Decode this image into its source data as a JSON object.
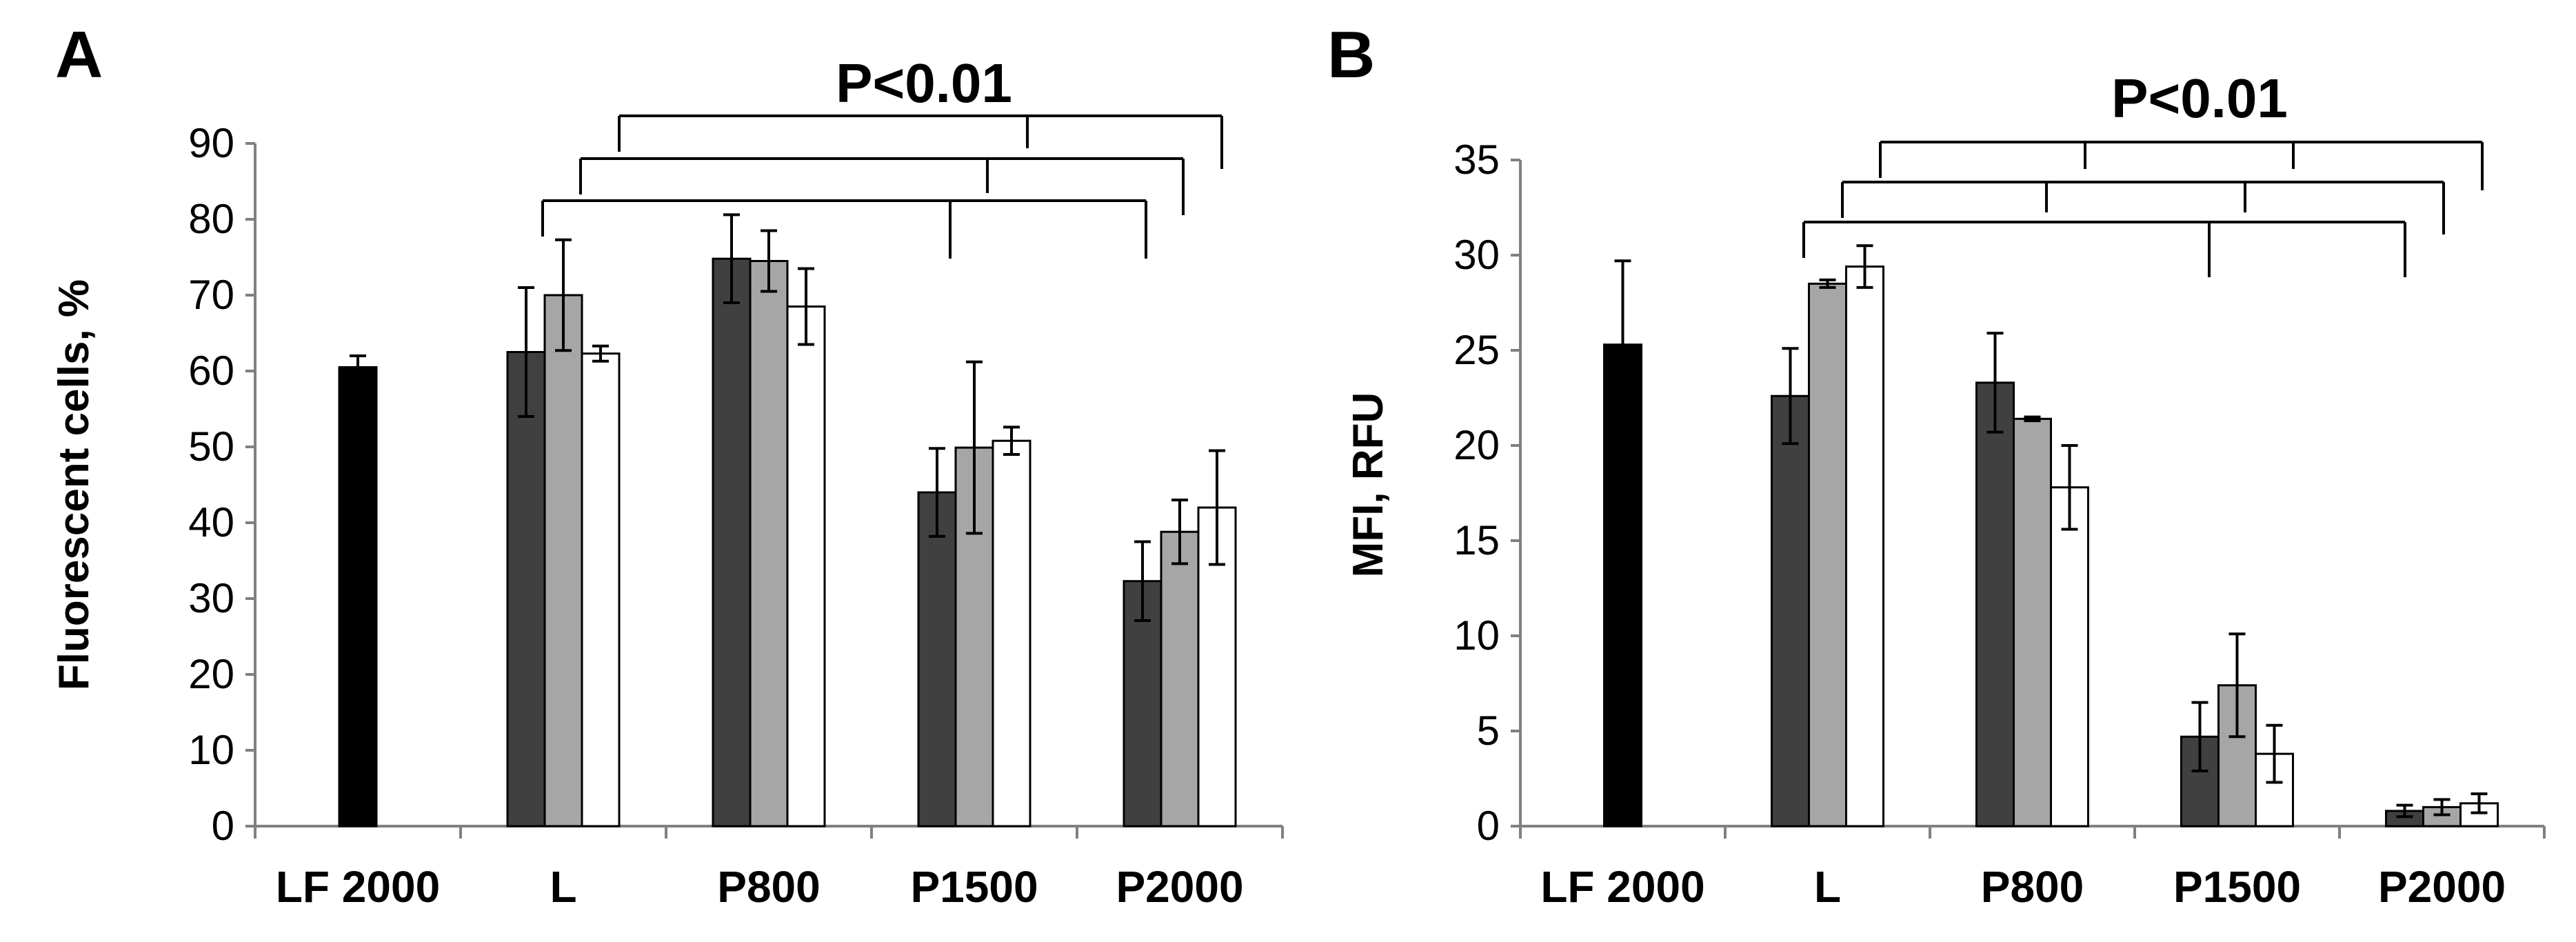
{
  "chart_data": [
    {
      "panel": "A",
      "type": "bar",
      "ylabel": "Fluorescent cells, %",
      "ylim": [
        0,
        90
      ],
      "yticks": [
        0,
        10,
        20,
        30,
        40,
        50,
        60,
        70,
        80,
        90
      ],
      "categories": [
        "LF 2000",
        "L",
        "P800",
        "P1500",
        "P2000"
      ],
      "bar_colors": [
        "#000000",
        "#404040",
        "#a6a6a6",
        "#ffffff"
      ],
      "series": [
        {
          "name": "LF 2000",
          "values": [
            60.5,
            null,
            null,
            null,
            null
          ],
          "errors": [
            1.5,
            null,
            null,
            null,
            null
          ]
        },
        {
          "name": "dark",
          "values": [
            null,
            62.5,
            74.8,
            44.0,
            32.3
          ],
          "errors": [
            null,
            8.5,
            5.8,
            5.8,
            5.2
          ]
        },
        {
          "name": "gray",
          "values": [
            null,
            70.0,
            74.5,
            49.9,
            38.8
          ],
          "errors": [
            null,
            7.3,
            4.0,
            11.3,
            4.2
          ]
        },
        {
          "name": "white",
          "values": [
            null,
            62.3,
            68.5,
            50.8,
            42.0
          ],
          "errors": [
            null,
            1.0,
            5.0,
            1.8,
            7.5
          ]
        }
      ],
      "significance": "P<0.01"
    },
    {
      "panel": "B",
      "type": "bar",
      "ylabel": "MFI, RFU",
      "ylim": [
        0,
        35
      ],
      "yticks": [
        0,
        5,
        10,
        15,
        20,
        25,
        30,
        35
      ],
      "categories": [
        "LF 2000",
        "L",
        "P800",
        "P1500",
        "P2000"
      ],
      "bar_colors": [
        "#000000",
        "#404040",
        "#a6a6a6",
        "#ffffff"
      ],
      "series": [
        {
          "name": "LF 2000",
          "values": [
            25.3,
            null,
            null,
            null,
            null
          ],
          "errors": [
            4.4,
            null,
            null,
            null,
            null
          ]
        },
        {
          "name": "dark",
          "values": [
            null,
            22.6,
            23.3,
            4.7,
            0.8
          ],
          "errors": [
            null,
            2.5,
            2.6,
            1.8,
            0.3
          ]
        },
        {
          "name": "gray",
          "values": [
            null,
            28.5,
            21.4,
            7.4,
            1.0
          ],
          "errors": [
            null,
            0.2,
            0.1,
            2.7,
            0.4
          ]
        },
        {
          "name": "white",
          "values": [
            null,
            29.4,
            17.8,
            3.8,
            1.2
          ],
          "errors": [
            null,
            1.1,
            2.2,
            1.5,
            0.5
          ]
        }
      ],
      "significance": "P<0.01"
    }
  ]
}
